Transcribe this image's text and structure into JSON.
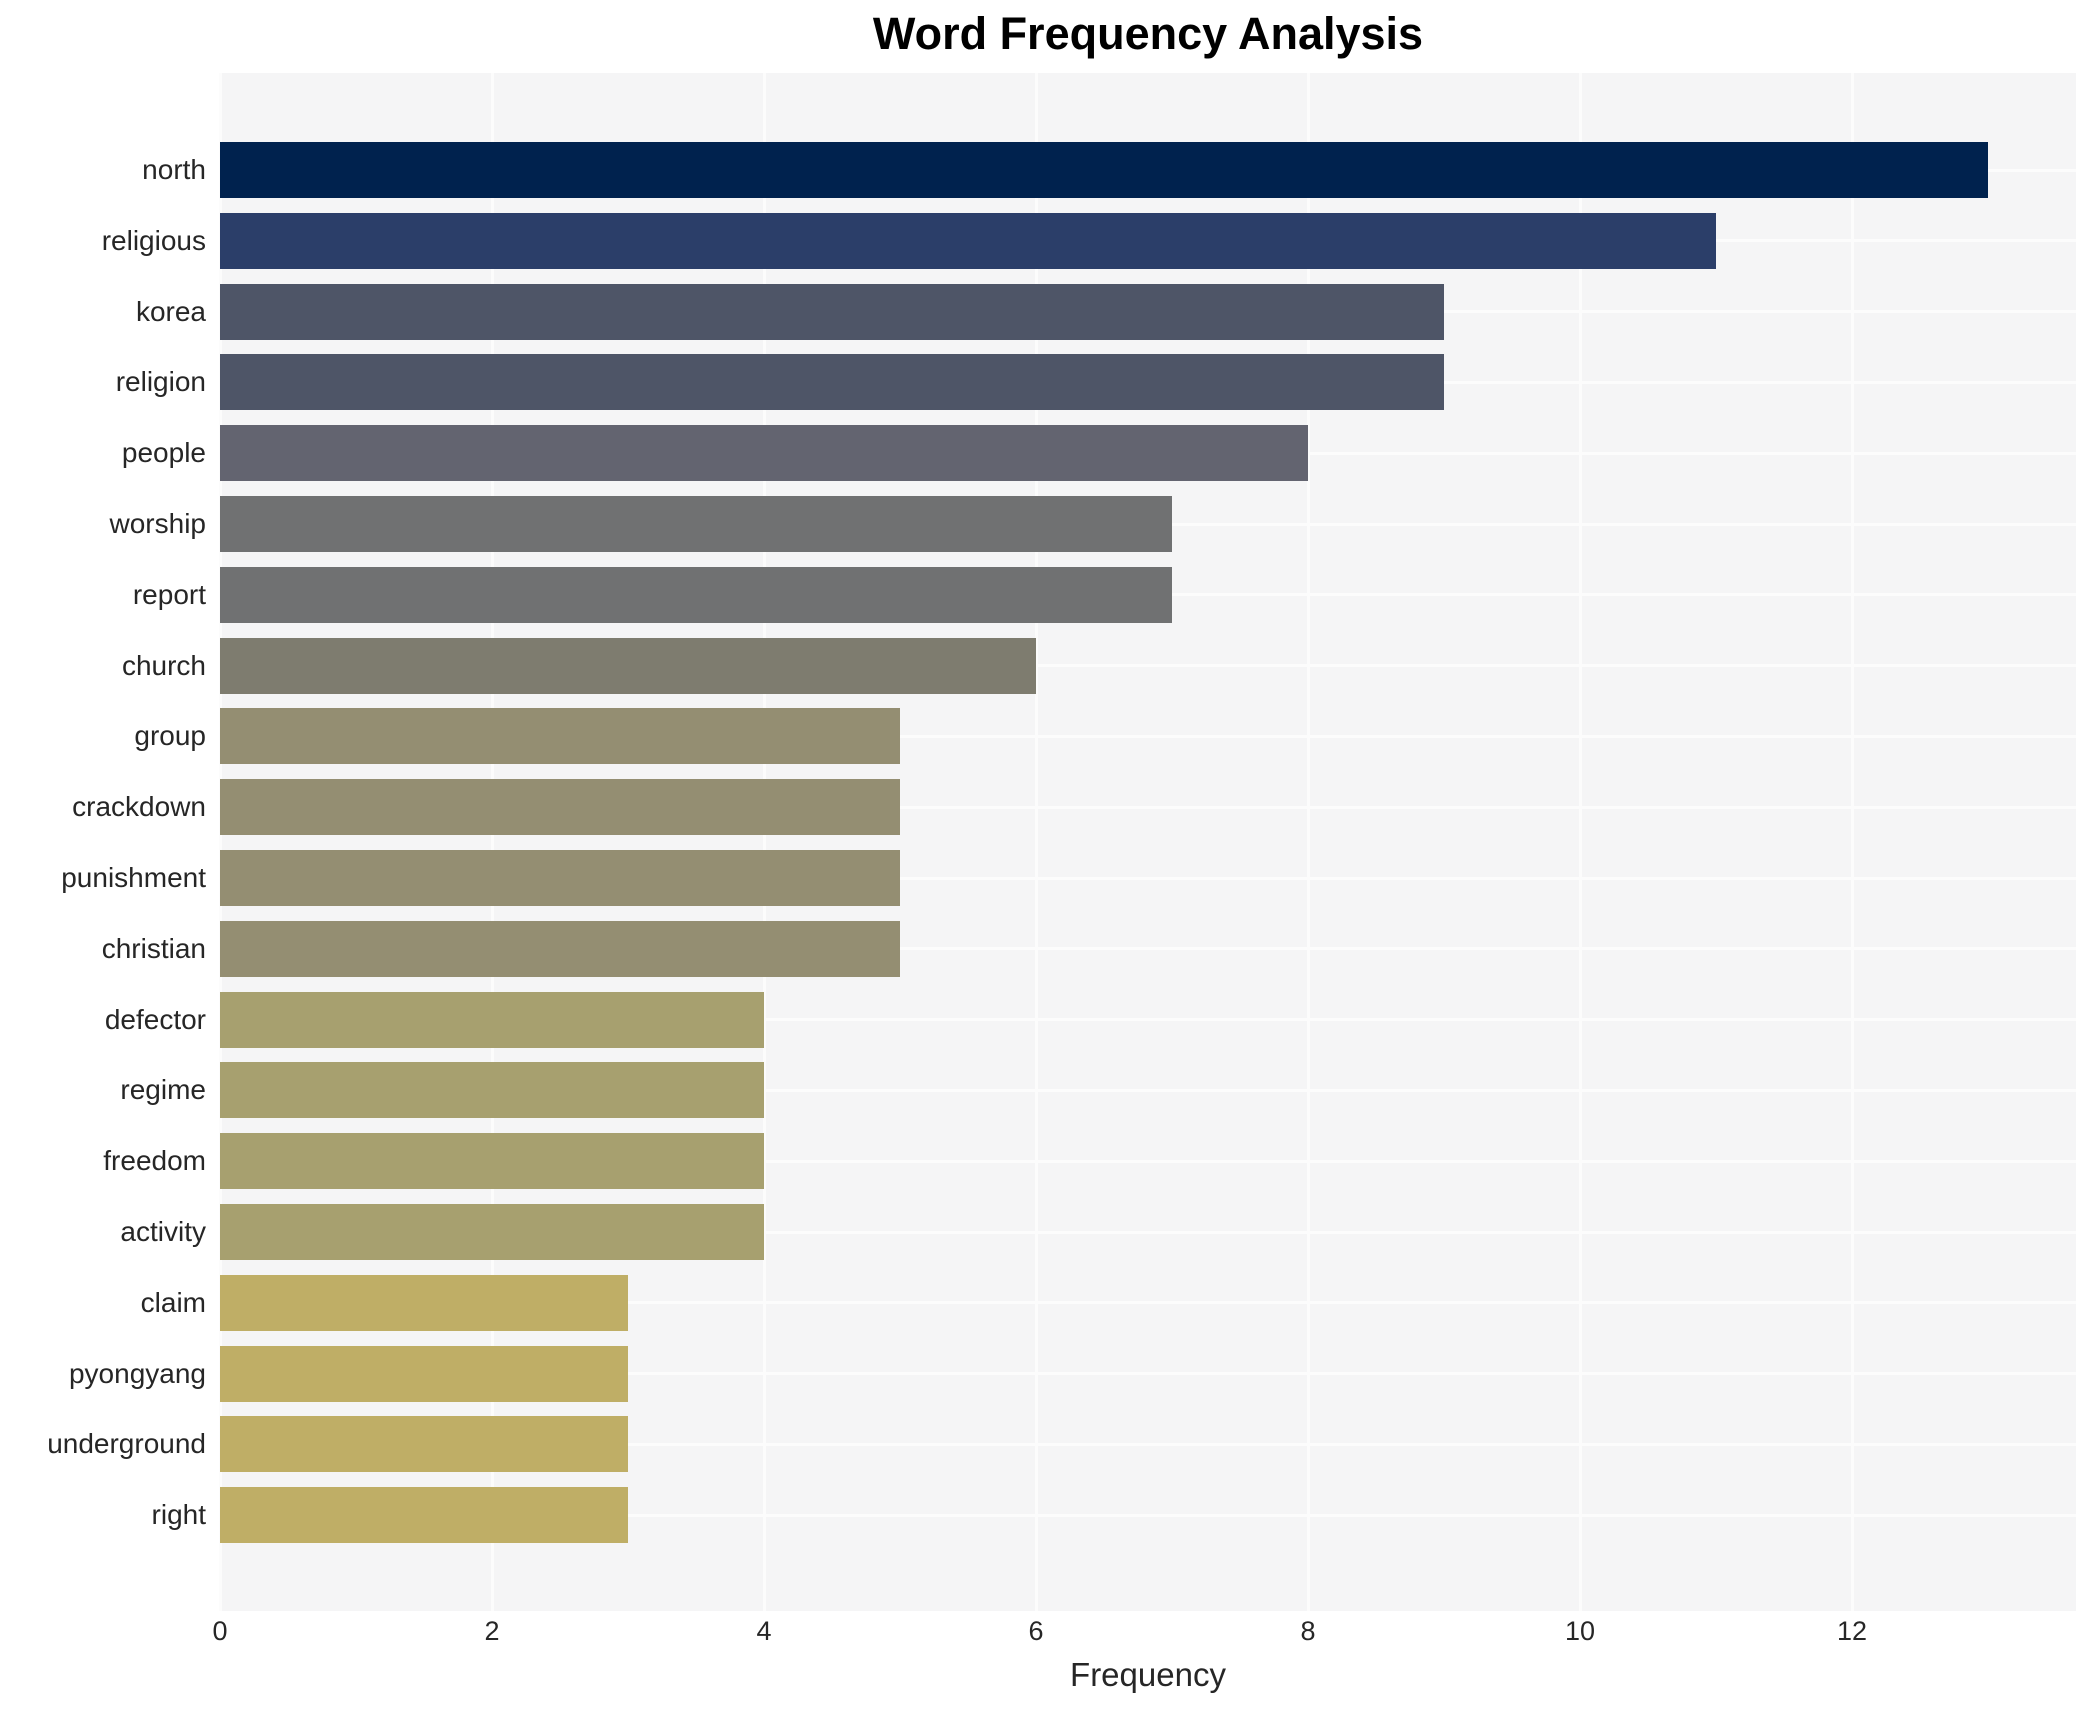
{
  "title": "Word Frequency Analysis",
  "chart_data": {
    "type": "bar",
    "orientation": "horizontal",
    "title": "Word Frequency Analysis",
    "xlabel": "Frequency",
    "categories": [
      "north",
      "religious",
      "korea",
      "religion",
      "people",
      "worship",
      "report",
      "church",
      "group",
      "crackdown",
      "punishment",
      "christian",
      "defector",
      "regime",
      "freedom",
      "activity",
      "claim",
      "pyongyang",
      "underground",
      "right"
    ],
    "values": [
      13,
      11,
      9,
      9,
      8,
      7,
      7,
      6,
      5,
      5,
      5,
      5,
      4,
      4,
      4,
      4,
      3,
      3,
      3,
      3
    ],
    "xticks": [
      0,
      2,
      4,
      6,
      8,
      10,
      12
    ],
    "xlim": [
      0,
      13.65
    ],
    "grid": true,
    "legend_position": "none",
    "colors_by_value": {
      "13": "#00224e",
      "11": "#2b3e69",
      "9": "#4e5567",
      "8": "#636470",
      "7": "#707172",
      "6": "#7e7c6f",
      "5": "#948e72",
      "4": "#a7a06f",
      "3": "#bfae66"
    },
    "plot_background": "#f5f5f6",
    "grid_color": "#fcfcfc",
    "text_color": "#262626",
    "title_color": "#000000"
  }
}
